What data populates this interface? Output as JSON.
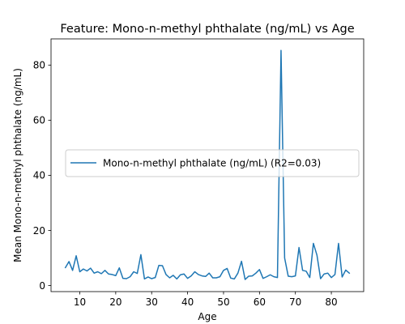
{
  "chart_data": {
    "type": "line",
    "title": "Feature: Mono-n-methyl phthalate (ng/mL) vs Age",
    "xlabel": "Age",
    "ylabel": "Mean Mono-n-methyl phthalate (ng/mL)",
    "xlim": [
      2,
      89
    ],
    "ylim": [
      -2.2,
      89.5
    ],
    "xticks": [
      10,
      20,
      30,
      40,
      50,
      60,
      70,
      80
    ],
    "yticks": [
      0,
      20,
      40,
      60,
      80
    ],
    "grid": false,
    "legend_position": "center-left",
    "series": [
      {
        "name": "Mono-n-methyl phthalate (ng/mL) (R2=0.03)",
        "color": "#1f77b4",
        "x": [
          6,
          7,
          8,
          9,
          10,
          11,
          12,
          13,
          14,
          15,
          16,
          17,
          18,
          19,
          20,
          21,
          22,
          23,
          24,
          25,
          26,
          27,
          28,
          29,
          30,
          31,
          32,
          33,
          34,
          35,
          36,
          37,
          38,
          39,
          40,
          41,
          42,
          43,
          44,
          45,
          46,
          47,
          48,
          49,
          50,
          51,
          52,
          53,
          54,
          55,
          56,
          57,
          58,
          59,
          60,
          61,
          62,
          63,
          64,
          65,
          66,
          67,
          68,
          69,
          70,
          71,
          72,
          73,
          74,
          75,
          76,
          77,
          78,
          79,
          80,
          81,
          82,
          83,
          84,
          85
        ],
        "values": [
          6.5,
          8.7,
          5.5,
          10.8,
          5.0,
          6.0,
          5.3,
          6.3,
          4.5,
          5.0,
          4.3,
          5.5,
          4.2,
          4.0,
          3.6,
          6.4,
          2.6,
          2.5,
          3.2,
          5.0,
          4.4,
          11.2,
          2.4,
          3.1,
          2.5,
          2.9,
          7.3,
          7.2,
          4.0,
          2.8,
          3.7,
          2.4,
          3.9,
          4.2,
          2.6,
          3.5,
          5.0,
          4.0,
          3.5,
          3.3,
          4.5,
          2.8,
          2.8,
          3.2,
          5.5,
          6.2,
          2.7,
          2.4,
          4.5,
          8.8,
          2.2,
          3.4,
          3.5,
          4.5,
          5.8,
          2.6,
          3.2,
          3.9,
          3.2,
          2.9,
          85.3,
          10.0,
          3.4,
          3.2,
          3.5,
          13.8,
          5.5,
          5.2,
          2.9,
          15.3,
          11.0,
          2.5,
          4.2,
          4.5,
          2.9,
          4.0,
          15.3,
          3.1,
          5.6,
          4.5
        ]
      }
    ]
  }
}
